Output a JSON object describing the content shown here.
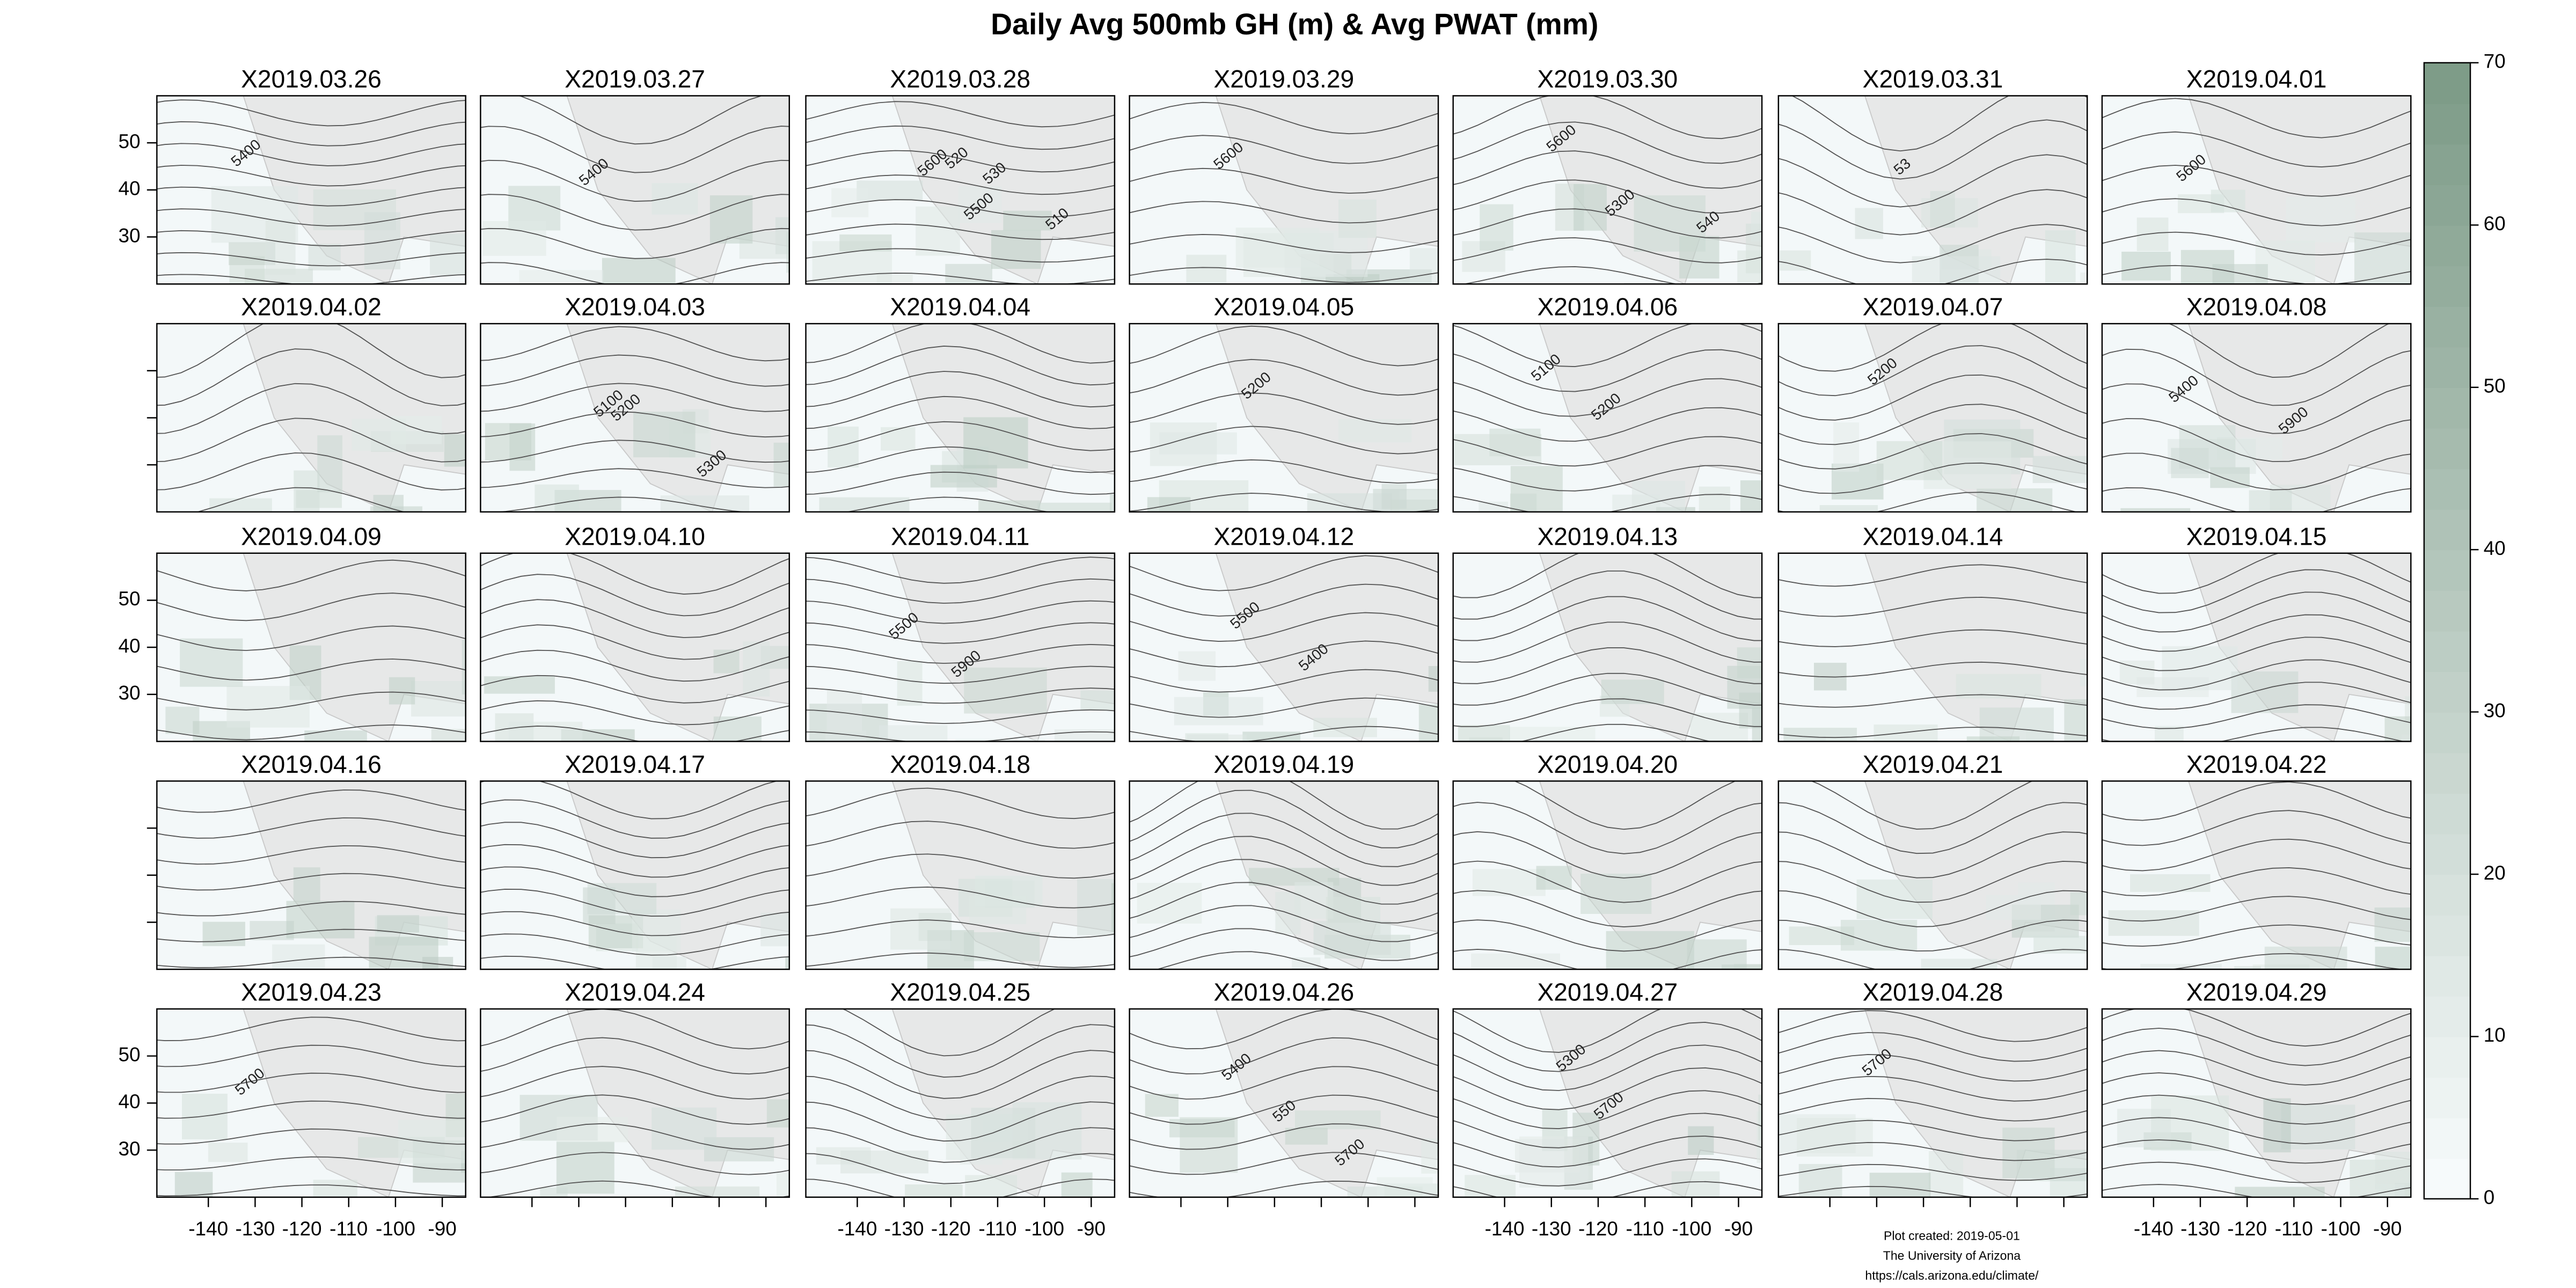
{
  "chart_data": {
    "type": "map",
    "title": "Daily Avg 500mb GH (m) & Avg PWAT (mm)",
    "columns": 7,
    "xlim": [
      -151,
      -85
    ],
    "xticks": [
      -140,
      -130,
      -120,
      -110,
      -100,
      -90
    ],
    "ylim": [
      20,
      60
    ],
    "yticks": [
      30,
      40,
      50
    ],
    "colorbar": {
      "lim": [
        0,
        70
      ],
      "ticks": [
        0,
        10,
        20,
        30,
        40,
        50,
        60,
        70
      ],
      "colors": [
        "#f6fafb",
        "#7e9c88"
      ]
    },
    "panels": [
      {
        "title": "X2019.03.26",
        "contour_labels": [
          "5400"
        ]
      },
      {
        "title": "X2019.03.27",
        "contour_labels": [
          "5400"
        ]
      },
      {
        "title": "X2019.03.28",
        "contour_labels": [
          "5600",
          "5500",
          "510",
          "520",
          "530"
        ]
      },
      {
        "title": "X2019.03.29",
        "contour_labels": [
          "5600"
        ]
      },
      {
        "title": "X2019.03.30",
        "contour_labels": [
          "5600",
          "5300",
          "540"
        ]
      },
      {
        "title": "X2019.03.31",
        "contour_labels": [
          "53"
        ]
      },
      {
        "title": "X2019.04.01",
        "contour_labels": [
          "5600"
        ]
      },
      {
        "title": "X2019.04.02",
        "contour_labels": []
      },
      {
        "title": "X2019.04.03",
        "contour_labels": [
          "5100",
          "5200",
          "5300"
        ]
      },
      {
        "title": "X2019.04.04",
        "contour_labels": []
      },
      {
        "title": "X2019.04.05",
        "contour_labels": [
          "5200"
        ]
      },
      {
        "title": "X2019.04.06",
        "contour_labels": [
          "5100",
          "5200"
        ]
      },
      {
        "title": "X2019.04.07",
        "contour_labels": [
          "5200"
        ]
      },
      {
        "title": "X2019.04.08",
        "contour_labels": [
          "5400",
          "5900"
        ]
      },
      {
        "title": "X2019.04.09",
        "contour_labels": []
      },
      {
        "title": "X2019.04.10",
        "contour_labels": []
      },
      {
        "title": "X2019.04.11",
        "contour_labels": [
          "5500",
          "5900"
        ]
      },
      {
        "title": "X2019.04.12",
        "contour_labels": [
          "5500",
          "5400"
        ]
      },
      {
        "title": "X2019.04.13",
        "contour_labels": []
      },
      {
        "title": "X2019.04.14",
        "contour_labels": []
      },
      {
        "title": "X2019.04.15",
        "contour_labels": []
      },
      {
        "title": "X2019.04.16",
        "contour_labels": []
      },
      {
        "title": "X2019.04.17",
        "contour_labels": []
      },
      {
        "title": "X2019.04.18",
        "contour_labels": []
      },
      {
        "title": "X2019.04.19",
        "contour_labels": []
      },
      {
        "title": "X2019.04.20",
        "contour_labels": []
      },
      {
        "title": "X2019.04.21",
        "contour_labels": []
      },
      {
        "title": "X2019.04.22",
        "contour_labels": []
      },
      {
        "title": "X2019.04.23",
        "contour_labels": [
          "5700"
        ]
      },
      {
        "title": "X2019.04.24",
        "contour_labels": []
      },
      {
        "title": "X2019.04.25",
        "contour_labels": []
      },
      {
        "title": "X2019.04.26",
        "contour_labels": [
          "5400",
          "550",
          "5700"
        ]
      },
      {
        "title": "X2019.04.27",
        "contour_labels": [
          "5300",
          "5700"
        ]
      },
      {
        "title": "X2019.04.28",
        "contour_labels": [
          "5700"
        ]
      },
      {
        "title": "X2019.04.29",
        "contour_labels": []
      }
    ],
    "footnotes": [
      "Plot created: 2019-05-01",
      "The University of Arizona",
      "https://cals.arizona.edu/climate/"
    ]
  }
}
